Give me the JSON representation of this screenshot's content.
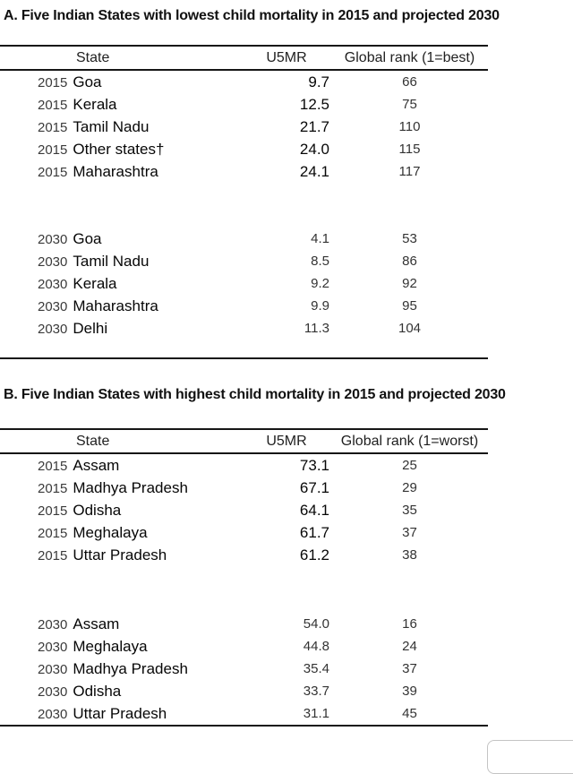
{
  "page": {
    "background": "#ffffff",
    "text_color": "#1a1a1a",
    "rule_color": "#161616"
  },
  "panels": [
    {
      "title": "A. Five Indian States with lowest child mortality in 2015 and projected 2030",
      "columns": {
        "state": "State",
        "u5mr": "U5MR",
        "rank": "Global rank (1=best)"
      },
      "groups": [
        {
          "year": "2015",
          "rows": [
            {
              "year": "2015",
              "state": "Goa",
              "u5mr": "9.7",
              "rank": "66"
            },
            {
              "year": "2015",
              "state": "Kerala",
              "u5mr": "12.5",
              "rank": "75"
            },
            {
              "year": "2015",
              "state": "Tamil Nadu",
              "u5mr": "21.7",
              "rank": "110"
            },
            {
              "year": "2015",
              "state": "Other states†",
              "u5mr": "24.0",
              "rank": "115"
            },
            {
              "year": "2015",
              "state": "Maharashtra",
              "u5mr": "24.1",
              "rank": "117"
            }
          ]
        },
        {
          "year": "2030",
          "rows": [
            {
              "year": "2030",
              "state": "Goa",
              "u5mr": "4.1",
              "rank": "53"
            },
            {
              "year": "2030",
              "state": "Tamil Nadu",
              "u5mr": "8.5",
              "rank": "86"
            },
            {
              "year": "2030",
              "state": "Kerala",
              "u5mr": "9.2",
              "rank": "92"
            },
            {
              "year": "2030",
              "state": "Maharashtra",
              "u5mr": "9.9",
              "rank": "95"
            },
            {
              "year": "2030",
              "state": "Delhi",
              "u5mr": "11.3",
              "rank": "104"
            }
          ]
        }
      ]
    },
    {
      "title": "B. Five Indian States with highest child mortality in 2015 and projected 2030",
      "columns": {
        "state": "State",
        "u5mr": "U5MR",
        "rank": "Global rank (1=worst)"
      },
      "groups": [
        {
          "year": "2015",
          "rows": [
            {
              "year": "2015",
              "state": "Assam",
              "u5mr": "73.1",
              "rank": "25"
            },
            {
              "year": "2015",
              "state": "Madhya Pradesh",
              "u5mr": "67.1",
              "rank": "29"
            },
            {
              "year": "2015",
              "state": "Odisha",
              "u5mr": "64.1",
              "rank": "35"
            },
            {
              "year": "2015",
              "state": "Meghalaya",
              "u5mr": "61.7",
              "rank": "37"
            },
            {
              "year": "2015",
              "state": "Uttar Pradesh",
              "u5mr": "61.2",
              "rank": "38"
            }
          ]
        },
        {
          "year": "2030",
          "rows": [
            {
              "year": "2030",
              "state": "Assam",
              "u5mr": "54.0",
              "rank": "16"
            },
            {
              "year": "2030",
              "state": "Meghalaya",
              "u5mr": "44.8",
              "rank": "24"
            },
            {
              "year": "2030",
              "state": "Madhya Pradesh",
              "u5mr": "35.4",
              "rank": "37"
            },
            {
              "year": "2030",
              "state": "Odisha",
              "u5mr": "33.7",
              "rank": "39"
            },
            {
              "year": "2030",
              "state": "Uttar Pradesh",
              "u5mr": "31.1",
              "rank": "45"
            }
          ]
        }
      ]
    }
  ],
  "chart_data": [
    {
      "type": "table",
      "title": "A. Five Indian States with lowest child mortality in 2015 and projected 2030",
      "columns": [
        "State",
        "U5MR",
        "Global rank (1=best)"
      ],
      "rows": [
        [
          "2015 Goa",
          9.7,
          66
        ],
        [
          "2015 Kerala",
          12.5,
          75
        ],
        [
          "2015 Tamil Nadu",
          21.7,
          110
        ],
        [
          "2015 Other states†",
          24.0,
          115
        ],
        [
          "2015 Maharashtra",
          24.1,
          117
        ],
        [
          "2030 Goa",
          4.1,
          53
        ],
        [
          "2030 Tamil Nadu",
          8.5,
          86
        ],
        [
          "2030 Kerala",
          9.2,
          92
        ],
        [
          "2030 Maharashtra",
          9.9,
          95
        ],
        [
          "2030 Delhi",
          11.3,
          104
        ]
      ]
    },
    {
      "type": "table",
      "title": "B. Five Indian States with highest child mortality in 2015 and projected 2030",
      "columns": [
        "State",
        "U5MR",
        "Global rank (1=worst)"
      ],
      "rows": [
        [
          "2015 Assam",
          73.1,
          25
        ],
        [
          "2015 Madhya Pradesh",
          67.1,
          29
        ],
        [
          "2015 Odisha",
          64.1,
          35
        ],
        [
          "2015 Meghalaya",
          61.7,
          37
        ],
        [
          "2015 Uttar Pradesh",
          61.2,
          38
        ],
        [
          "2030 Assam",
          54.0,
          16
        ],
        [
          "2030 Meghalaya",
          44.8,
          24
        ],
        [
          "2030 Madhya Pradesh",
          35.4,
          37
        ],
        [
          "2030 Odisha",
          33.7,
          39
        ],
        [
          "2030 Uttar Pradesh",
          31.1,
          45
        ]
      ]
    }
  ]
}
